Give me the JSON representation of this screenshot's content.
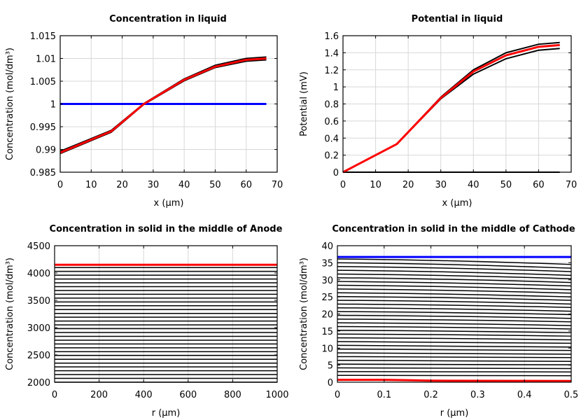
{
  "chart_data": [
    {
      "type": "line",
      "title": "Concentration in liquid",
      "xlabel": "x (µm)",
      "ylabel": "Concentration (mol/dm³)",
      "xlim": [
        0,
        70
      ],
      "ylim": [
        0.985,
        1.015
      ],
      "xticks": [
        0,
        10,
        20,
        30,
        40,
        50,
        60,
        70
      ],
      "yticks": [
        0.985,
        0.99,
        0.995,
        1,
        1.005,
        1.01,
        1.015
      ],
      "grid": true,
      "series": [
        {
          "color": "#000000",
          "x": [
            0,
            16.5,
            27,
            40,
            50,
            60,
            66.5
          ],
          "y": [
            0.9896,
            0.9942,
            1.0001,
            1.0055,
            1.0085,
            1.01,
            1.0103
          ]
        },
        {
          "color": "#000000",
          "x": [
            0,
            16.5,
            27,
            40,
            50,
            60,
            66.5
          ],
          "y": [
            0.9891,
            0.9938,
            0.9999,
            1.0051,
            1.008,
            1.0094,
            1.0097
          ]
        },
        {
          "color": "#0000ff",
          "x": [
            0,
            66.5
          ],
          "y": [
            1,
            1
          ]
        },
        {
          "color": "#ff0000",
          "x": [
            0,
            16.5,
            27,
            40,
            50,
            60,
            66.5
          ],
          "y": [
            0.9893,
            0.994,
            1.0,
            1.0053,
            1.0082,
            1.0097,
            1.01
          ]
        }
      ]
    },
    {
      "type": "line",
      "title": "Potential in liquid",
      "xlabel": "x (µm)",
      "ylabel": "Potential (mV)",
      "xlim": [
        0,
        70
      ],
      "ylim": [
        0,
        1.6
      ],
      "xticks": [
        0,
        10,
        20,
        30,
        40,
        50,
        60,
        70
      ],
      "yticks": [
        0,
        0.2,
        0.4,
        0.6,
        0.8,
        1,
        1.2,
        1.4,
        1.6
      ],
      "grid": true,
      "series": [
        {
          "color": "#000000",
          "x": [
            0,
            66.5
          ],
          "y": [
            0,
            0
          ]
        },
        {
          "color": "#000000",
          "x": [
            0,
            16.5,
            30,
            40,
            50,
            60,
            66.5
          ],
          "y": [
            0,
            0.33,
            0.88,
            1.2,
            1.4,
            1.5,
            1.52
          ]
        },
        {
          "color": "#000000",
          "x": [
            0,
            16.5,
            30,
            40,
            50,
            60,
            66.5
          ],
          "y": [
            0,
            0.33,
            0.86,
            1.15,
            1.33,
            1.43,
            1.45
          ]
        },
        {
          "color": "#ff0000",
          "x": [
            0,
            16.5,
            30,
            40,
            50,
            60,
            66.5
          ],
          "y": [
            0,
            0.33,
            0.87,
            1.18,
            1.37,
            1.47,
            1.49
          ]
        }
      ]
    },
    {
      "type": "line",
      "title": "Concentration in solid in the middle of Anode",
      "xlabel": "r (µm)",
      "ylabel": "Concentration (mol/dm³)",
      "xlim": [
        0,
        1000
      ],
      "ylim": [
        2000,
        4500
      ],
      "xticks": [
        0,
        200,
        400,
        600,
        800,
        1000
      ],
      "yticks": [
        2000,
        2500,
        3000,
        3500,
        4000,
        4500
      ],
      "grid": true,
      "black_levels": [
        2000,
        2070,
        2140,
        2210,
        2280,
        2350,
        2420,
        2490,
        2560,
        2630,
        2700,
        2770,
        2840,
        2910,
        2980,
        3050,
        3120,
        3190,
        3260,
        3330,
        3400,
        3470,
        3540,
        3610,
        3680,
        3750,
        3820,
        3890,
        3960,
        4030,
        4100
      ],
      "series": [
        {
          "color": "#ff0000",
          "x": [
            0,
            1000
          ],
          "y": [
            4150,
            4150
          ]
        }
      ]
    },
    {
      "type": "line",
      "title": "Concentration in solid in the middle of Cathode",
      "xlabel": "r (µm)",
      "ylabel": "Concentration (mol/dm³)",
      "xlim": [
        0,
        0.5
      ],
      "ylim": [
        0,
        40
      ],
      "xticks": [
        0,
        0.1,
        0.2,
        0.3,
        0.4,
        0.5
      ],
      "yticks": [
        0,
        5,
        10,
        15,
        20,
        25,
        30,
        35,
        40
      ],
      "grid": true,
      "black_start": [
        2,
        3.1,
        4.2,
        5.3,
        6.4,
        7.5,
        8.6,
        9.7,
        10.8,
        11.9,
        13,
        14.1,
        15.2,
        16.3,
        17.4,
        18.5,
        19.6,
        20.7,
        21.8,
        22.9,
        24,
        25.1,
        26.2,
        27.3,
        28.4,
        29.5,
        30.6,
        31.7,
        32.8,
        33.9,
        35,
        36.1
      ],
      "black_end": [
        1.9,
        3.0,
        4.0,
        5.1,
        6.1,
        7.2,
        8.2,
        9.3,
        10.3,
        11.4,
        12.4,
        13.5,
        14.5,
        15.6,
        16.6,
        17.7,
        18.7,
        19.8,
        20.8,
        21.9,
        22.9,
        24.0,
        25.0,
        26.1,
        27.1,
        28.2,
        29.2,
        30.3,
        31.3,
        32.4,
        33.4,
        34.5
      ],
      "series": [
        {
          "color": "#0000ff",
          "x": [
            0,
            0.5
          ],
          "y": [
            36.7,
            36.7
          ]
        },
        {
          "color": "#ff0000",
          "x": [
            0,
            0.1,
            0.15,
            0.2,
            0.5
          ],
          "y": [
            0.7,
            0.7,
            0.6,
            0.45,
            0.35
          ]
        }
      ]
    }
  ]
}
